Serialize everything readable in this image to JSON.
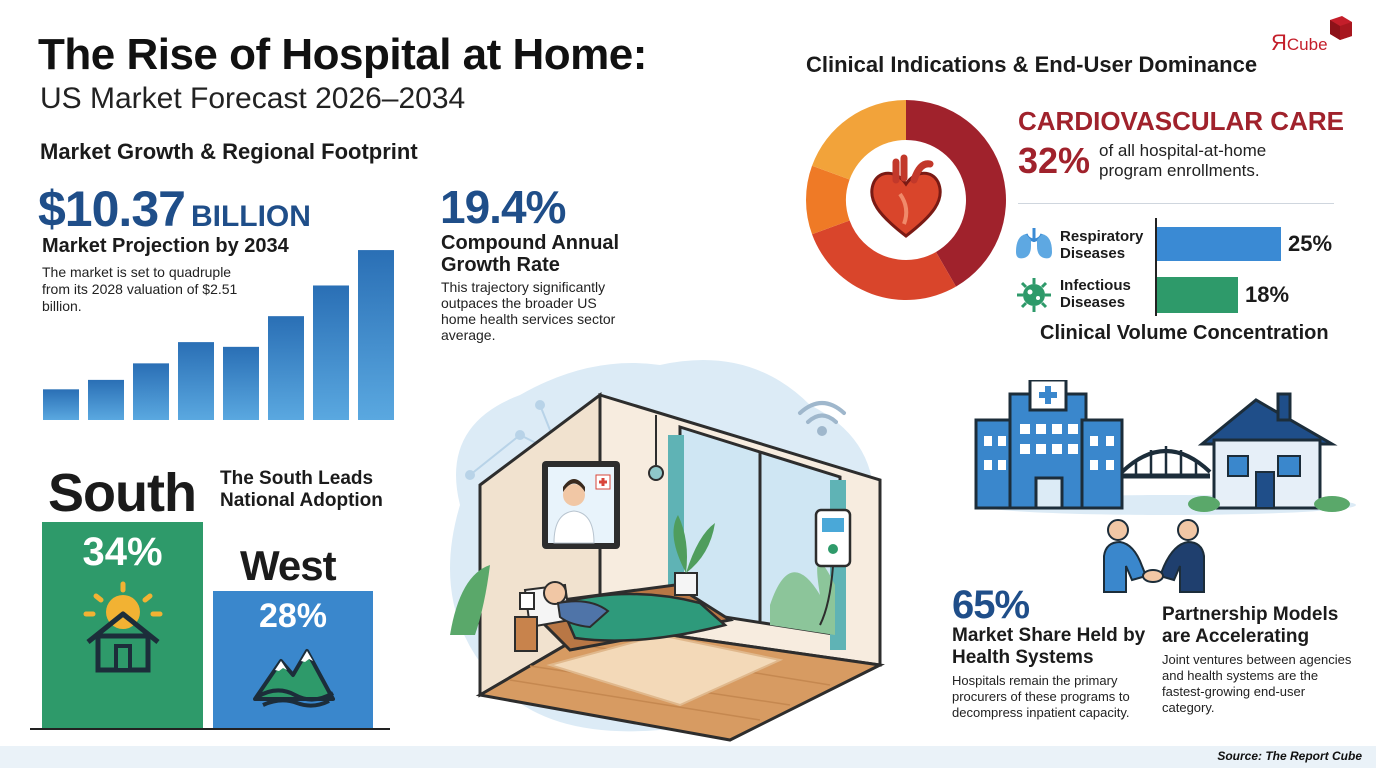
{
  "header": {
    "title": "The Rise of Hospital at Home:",
    "subtitle": "US Market Forecast 2026–2034"
  },
  "market_growth": {
    "heading": "Market Growth & Regional Footprint",
    "value": "$10.37",
    "value_unit": "BILLION",
    "label": "Market Projection by 2034",
    "description": "The market is set to quadruple from its 2028 valuation of $2.51 billion.",
    "growth_bars": [
      0.13,
      0.17,
      0.24,
      0.33,
      0.31,
      0.44,
      0.57,
      0.72,
      1.0
    ]
  },
  "cagr": {
    "value": "19.4%",
    "label": "Compound Annual Growth Rate",
    "description": "This trajectory significantly outpaces the broader US home health services sector average."
  },
  "regions": {
    "headline": "The South Leads National Adoption",
    "south": {
      "name": "South",
      "pct": "34%",
      "color": "#2e9a6a"
    },
    "west": {
      "name": "West",
      "pct": "28%",
      "color": "#3a87cc"
    }
  },
  "clinical": {
    "heading": "Clinical Indications & End-User Dominance",
    "cardio_title": "CARDIOVASCULAR CARE",
    "cardio_pct": "32%",
    "cardio_desc": "of all hospital-at-home program enrollments.",
    "respiratory": {
      "label": "Respiratory Diseases",
      "pct": "25%",
      "value": 25
    },
    "infectious": {
      "label": "Infectious Diseases",
      "pct": "18%",
      "value": 18
    },
    "volume_label": "Clinical Volume Concentration",
    "donut_colors": [
      "#a0222c",
      "#d9452b",
      "#ef7a26",
      "#f2a33a"
    ]
  },
  "market_share": {
    "value": "65%",
    "label": "Market Share Held by Health Systems",
    "description": "Hospitals remain the primary procurers of these programs to decompress inpatient capacity."
  },
  "partnership": {
    "title": "Partnership Models are Accelerating",
    "description": "Joint ventures between agencies and health systems are the fastest-growing end-user category."
  },
  "logo": {
    "letter": "Я",
    "text": "Cube"
  },
  "footer": {
    "source": "Source: The Report Cube"
  },
  "icons": {
    "heart": "heart-icon",
    "lungs": "lungs-icon",
    "virus": "virus-icon",
    "hospital": "hospital-icon",
    "house": "house-icon",
    "handshake": "handshake-icon",
    "sun_house": "sun-house-icon",
    "mountains": "mountains-icon",
    "wifi": "wifi-icon"
  }
}
